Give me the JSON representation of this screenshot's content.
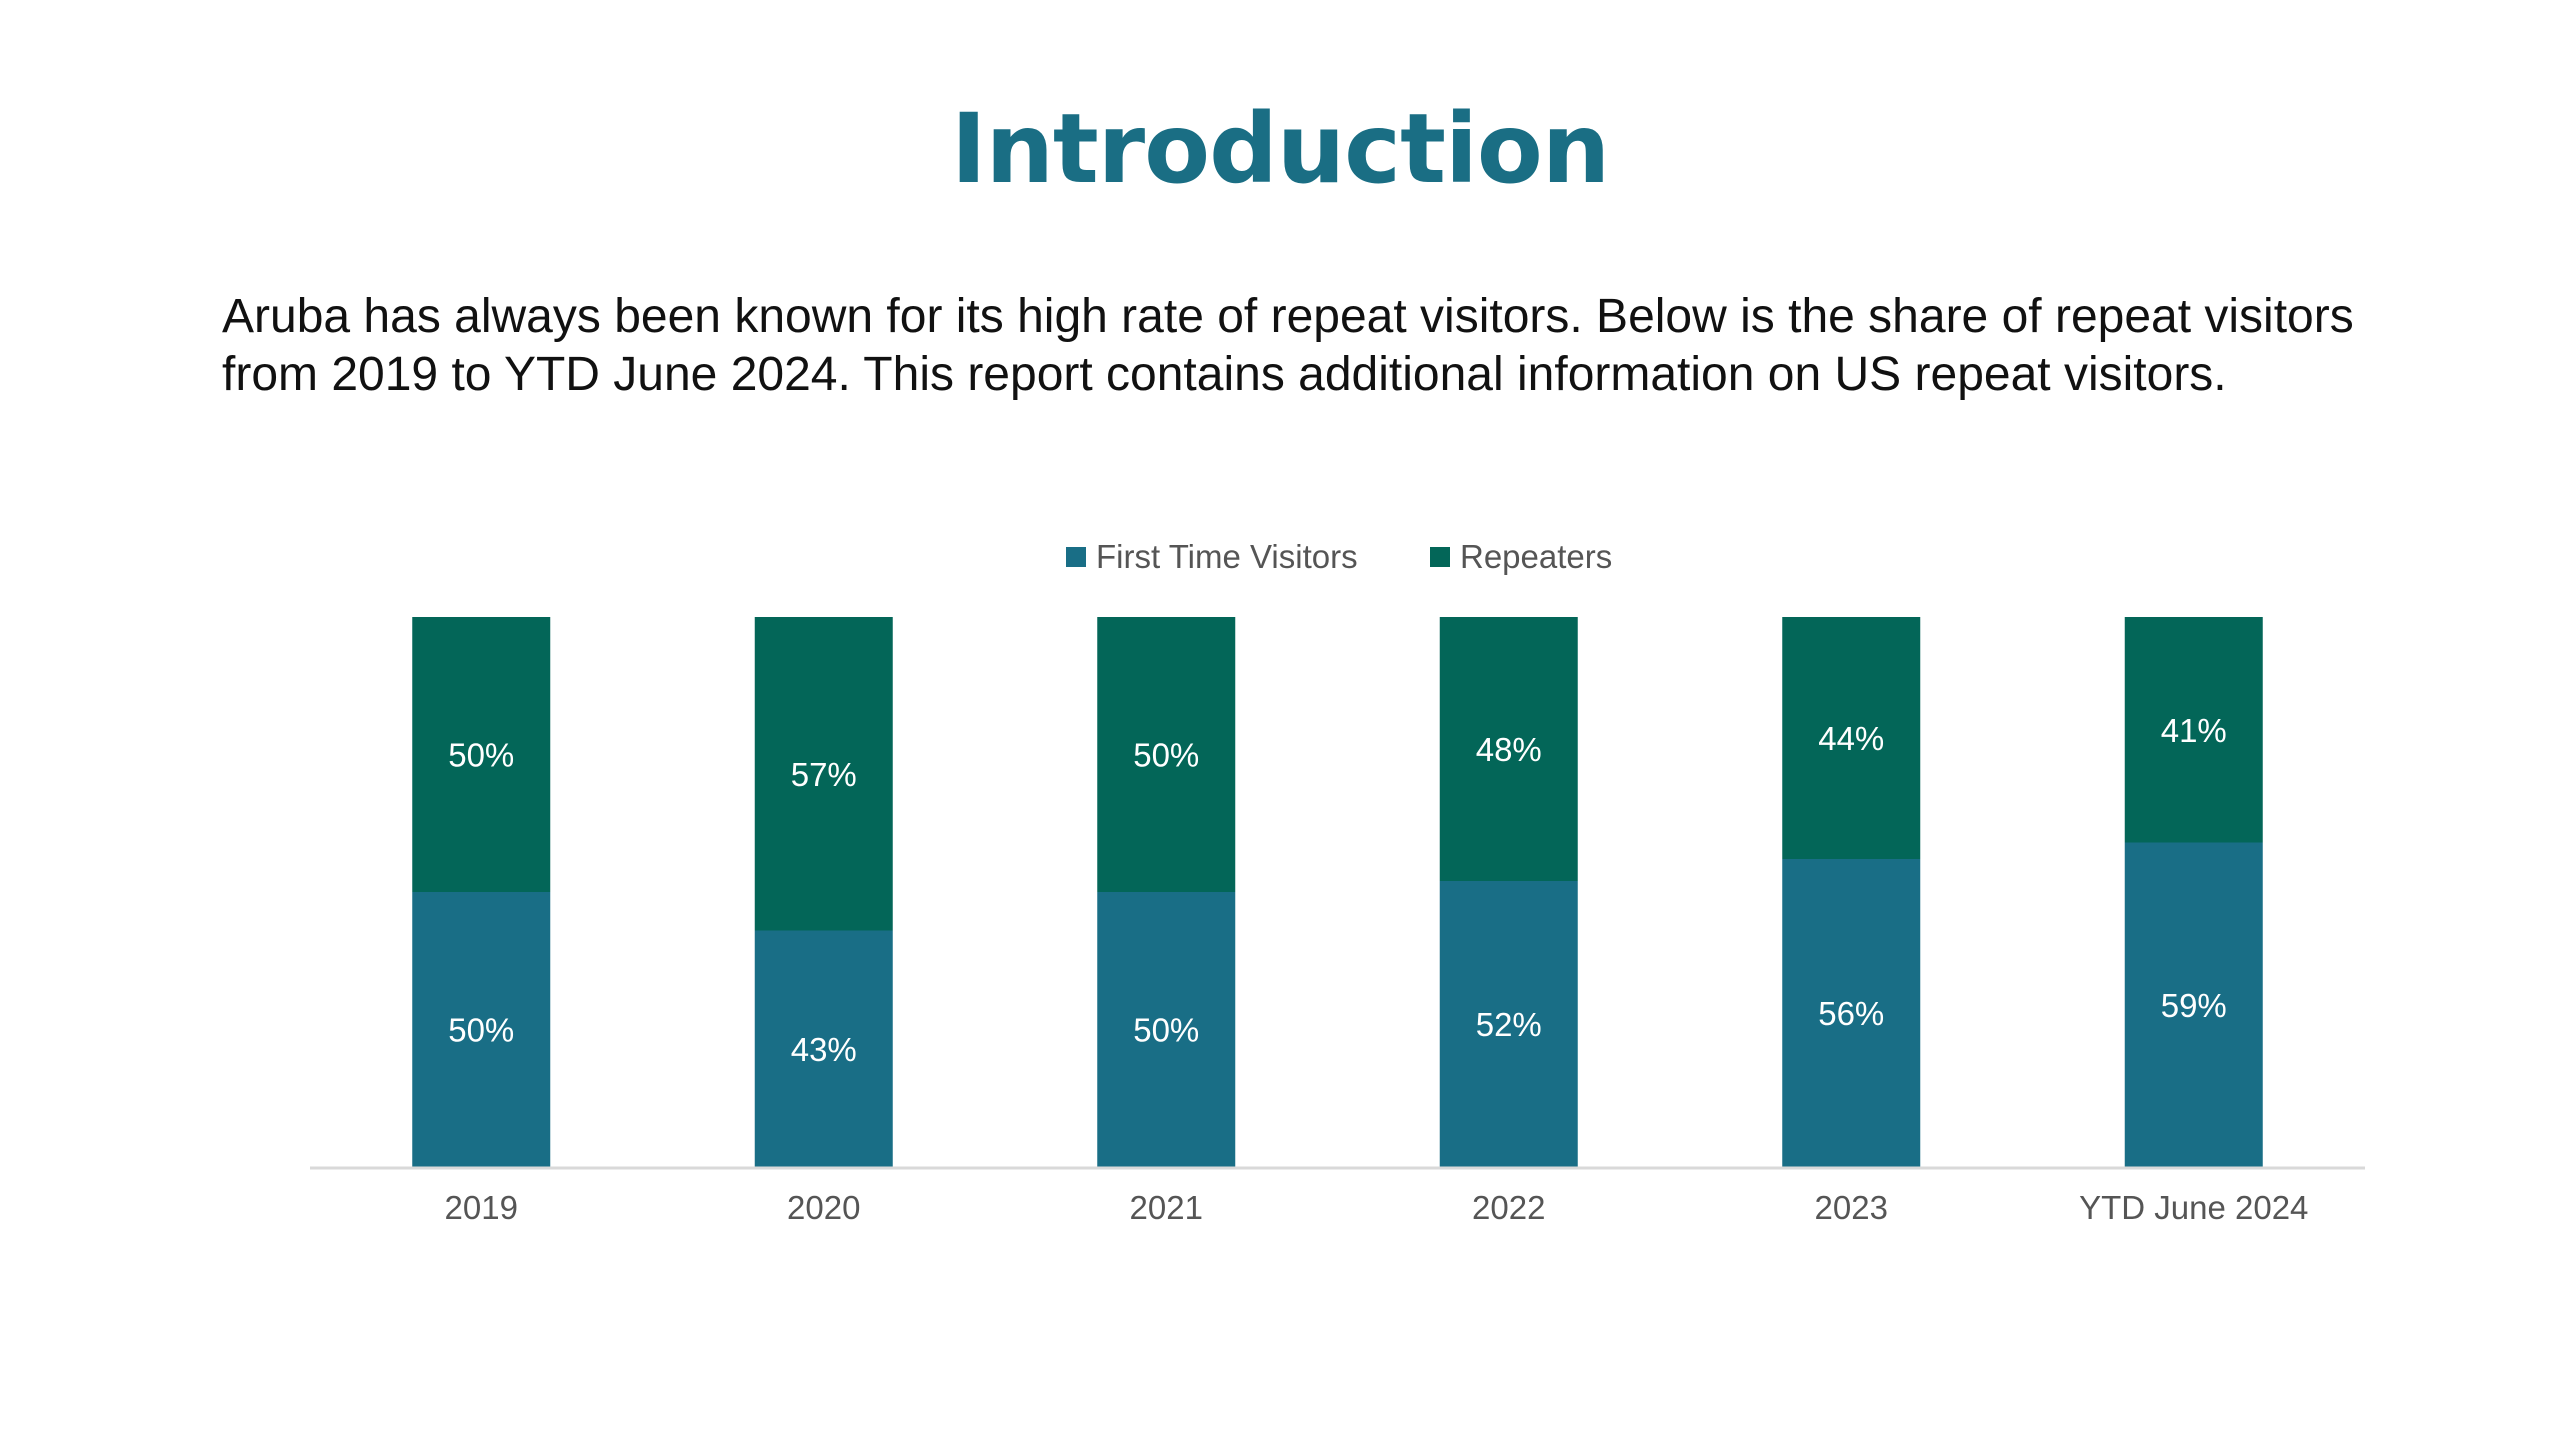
{
  "slide": {
    "title": "Introduction",
    "intro_line1": "Aruba has always been known for its high rate of repeat visitors. Below is the share of repeat visitors",
    "intro_line2": "from 2019 to YTD June 2024. This report contains additional information on US repeat visitors."
  },
  "chart_data": {
    "type": "bar",
    "stacked": true,
    "percent_stacked": true,
    "categories": [
      "2019",
      "2020",
      "2021",
      "2022",
      "2023",
      "YTD June 2024"
    ],
    "series": [
      {
        "name": "First Time Visitors",
        "color": "#196e86",
        "values": [
          50,
          43,
          50,
          52,
          56,
          59
        ],
        "labels": [
          "50%",
          "43%",
          "50%",
          "52%",
          "56%",
          "59%"
        ]
      },
      {
        "name": "Repeaters",
        "color": "#036658",
        "values": [
          50,
          57,
          50,
          48,
          44,
          41
        ],
        "labels": [
          "50%",
          "57%",
          "50%",
          "48%",
          "44%",
          "41%"
        ]
      }
    ],
    "ylim": [
      0,
      100
    ],
    "grid": false,
    "legend": "top-center",
    "title": "",
    "xlabel": "",
    "ylabel": ""
  }
}
